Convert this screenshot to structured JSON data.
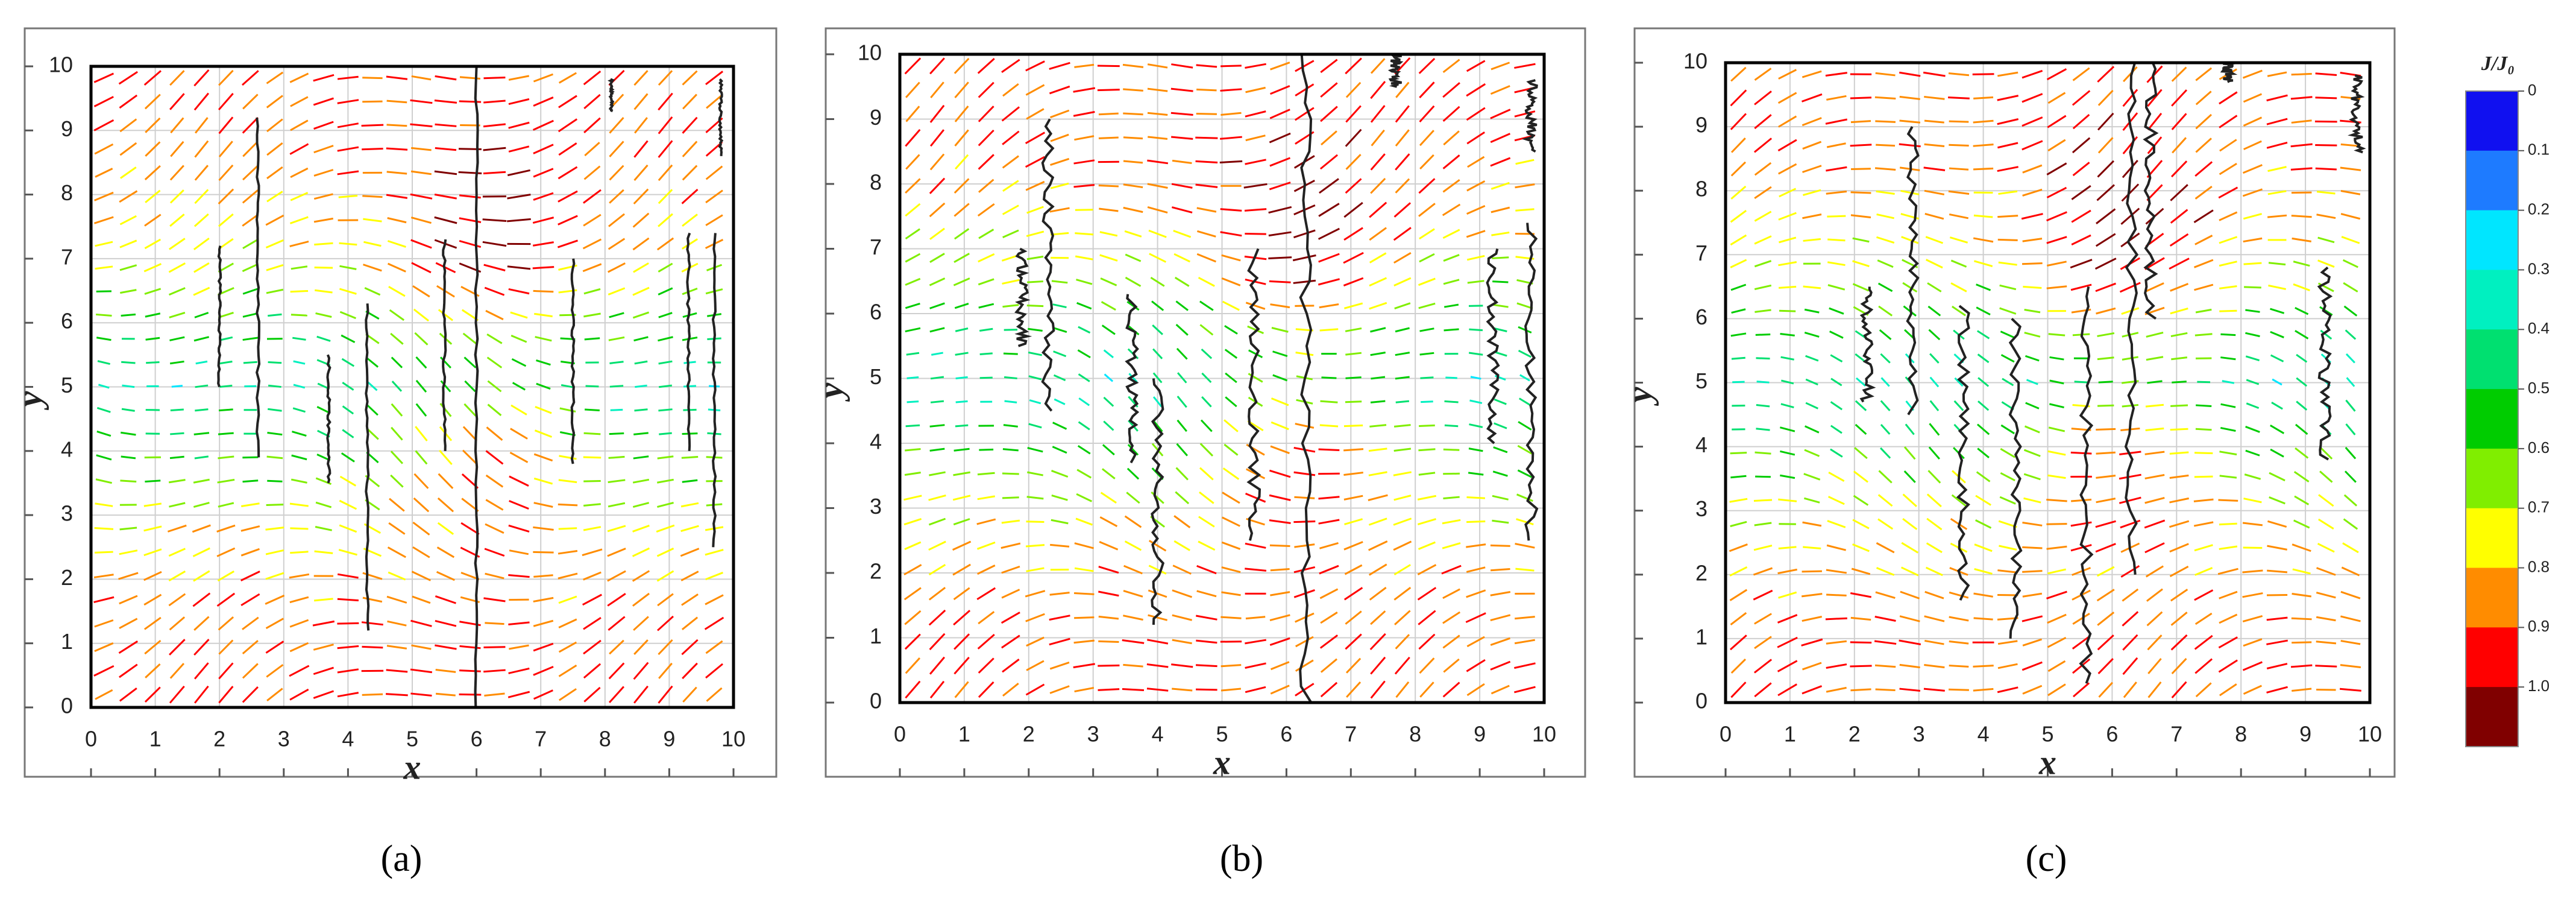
{
  "chart_data": [
    {
      "type": "vector-field",
      "x_label": "x",
      "y_label": "y",
      "panel_label": "(a)",
      "xlim": [
        0,
        10
      ],
      "ylim": [
        0,
        10
      ],
      "xticks": [
        0,
        1,
        2,
        3,
        4,
        5,
        6,
        7,
        8,
        9,
        10
      ],
      "yticks": [
        0,
        1,
        2,
        3,
        4,
        5,
        6,
        7,
        8,
        9,
        10
      ],
      "grid": true
    },
    {
      "type": "vector-field",
      "x_label": "x",
      "y_label": "y",
      "panel_label": "(b)",
      "xlim": [
        0,
        10
      ],
      "ylim": [
        0,
        10
      ],
      "xticks": [
        0,
        1,
        2,
        3,
        4,
        5,
        6,
        7,
        8,
        9,
        10
      ],
      "yticks": [
        0,
        1,
        2,
        3,
        4,
        5,
        6,
        7,
        8,
        9,
        10
      ],
      "grid": true
    },
    {
      "type": "vector-field",
      "x_label": "x",
      "y_label": "y",
      "panel_label": "(c)",
      "xlim": [
        0,
        10
      ],
      "ylim": [
        0,
        10
      ],
      "xticks": [
        0,
        1,
        2,
        3,
        4,
        5,
        6,
        7,
        8,
        9,
        10
      ],
      "yticks": [
        0,
        1,
        2,
        3,
        4,
        5,
        6,
        7,
        8,
        9,
        10
      ],
      "grid": true
    },
    {
      "type": "colorbar",
      "title": "J/J₀",
      "ticks": [
        0,
        0.1,
        0.2,
        0.3,
        0.4,
        0.5,
        0.6,
        0.7,
        0.8,
        0.9,
        {
          "value": 1,
          "label": "1.0"
        }
      ],
      "colors": [
        "#1010f0",
        "#1e7bff",
        "#00e6ff",
        "#00f0c0",
        "#00e070",
        "#00cc00",
        "#80ee00",
        "#ffff00",
        "#ff8c00",
        "#ff0000",
        "#800000"
      ]
    }
  ]
}
